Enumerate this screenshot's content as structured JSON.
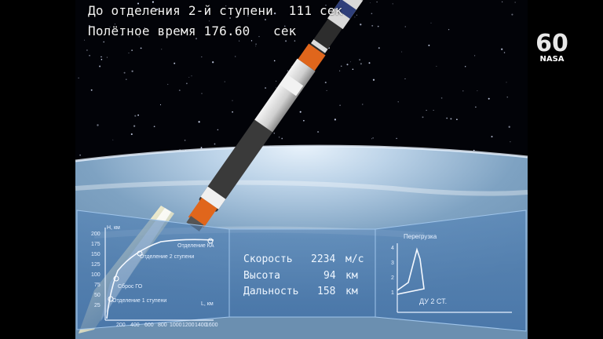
{
  "header": {
    "line1": "До отделения 2-й ступени  111 сек",
    "line2": "Полётное время 176.60   сек"
  },
  "logo": {
    "number": "60",
    "text": "NASA"
  },
  "telemetry": {
    "speed_label": "Скорость",
    "speed_value": "2234",
    "speed_unit": "м/с",
    "altitude_label": "Высота",
    "altitude_value": "94",
    "altitude_unit": "км",
    "range_label": "Дальность",
    "range_value": "158",
    "range_unit": "км"
  },
  "trajectory_chart": {
    "y_unit": "Н, км",
    "x_unit": "L, км",
    "y_ticks": [
      "200",
      "175",
      "150",
      "125",
      "100",
      "75",
      "50",
      "25"
    ],
    "x_ticks": [
      "200",
      "400",
      "600",
      "800",
      "1000",
      "1200",
      "1400",
      "1600"
    ],
    "events": [
      "Отделение 2 ступени",
      "Сброс ГО",
      "Отделение 1 ступени",
      "Отделение КА"
    ]
  },
  "overload_chart": {
    "title": "Перегрузка",
    "y_ticks": [
      "4",
      "3",
      "2",
      "1"
    ],
    "label": "ДУ 2 СТ."
  }
}
